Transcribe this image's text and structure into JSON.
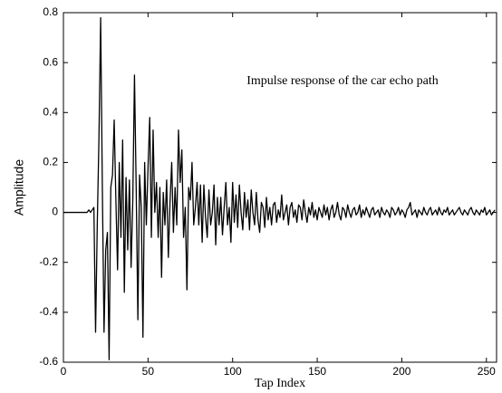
{
  "chart_data": {
    "type": "line",
    "annotation": "Impulse response of the car echo path",
    "x_label": "Tap Index",
    "y_label": "Amplitude",
    "color": "#000000",
    "xlim": [
      0,
      256
    ],
    "xticks": [
      0,
      50,
      100,
      150,
      200,
      250
    ],
    "ylim": [
      -0.6,
      0.8
    ],
    "yticks": [
      -0.6,
      -0.4,
      -0.2,
      0,
      0.2,
      0.4,
      0.6,
      0.8
    ],
    "grid": false,
    "x": [
      0,
      1,
      2,
      3,
      4,
      5,
      6,
      7,
      8,
      9,
      10,
      11,
      12,
      13,
      14,
      15,
      16,
      17,
      18,
      19,
      20,
      21,
      22,
      23,
      24,
      25,
      26,
      27,
      28,
      29,
      30,
      31,
      32,
      33,
      34,
      35,
      36,
      37,
      38,
      39,
      40,
      41,
      42,
      43,
      44,
      45,
      46,
      47,
      48,
      49,
      50,
      51,
      52,
      53,
      54,
      55,
      56,
      57,
      58,
      59,
      60,
      61,
      62,
      63,
      64,
      65,
      66,
      67,
      68,
      69,
      70,
      71,
      72,
      73,
      74,
      75,
      76,
      77,
      78,
      79,
      80,
      81,
      82,
      83,
      84,
      85,
      86,
      87,
      88,
      89,
      90,
      91,
      92,
      93,
      94,
      95,
      96,
      97,
      98,
      99,
      100,
      101,
      102,
      103,
      104,
      105,
      106,
      107,
      108,
      109,
      110,
      111,
      112,
      113,
      114,
      115,
      116,
      117,
      118,
      119,
      120,
      121,
      122,
      123,
      124,
      125,
      126,
      127,
      128,
      129,
      130,
      131,
      132,
      133,
      134,
      135,
      136,
      137,
      138,
      139,
      140,
      141,
      142,
      143,
      144,
      145,
      146,
      147,
      148,
      149,
      150,
      151,
      152,
      153,
      154,
      155,
      156,
      157,
      158,
      159,
      160,
      161,
      162,
      163,
      164,
      165,
      166,
      167,
      168,
      169,
      170,
      171,
      172,
      173,
      174,
      175,
      176,
      177,
      178,
      179,
      180,
      181,
      182,
      183,
      184,
      185,
      186,
      187,
      188,
      189,
      190,
      191,
      192,
      193,
      194,
      195,
      196,
      197,
      198,
      199,
      200,
      201,
      202,
      203,
      204,
      205,
      206,
      207,
      208,
      209,
      210,
      211,
      212,
      213,
      214,
      215,
      216,
      217,
      218,
      219,
      220,
      221,
      222,
      223,
      224,
      225,
      226,
      227,
      228,
      229,
      230,
      231,
      232,
      233,
      234,
      235,
      236,
      237,
      238,
      239,
      240,
      241,
      242,
      243,
      244,
      245,
      246,
      247,
      248,
      249,
      250,
      251,
      252,
      253,
      254,
      255
    ],
    "values": [
      0,
      0,
      0,
      0,
      0,
      0,
      0,
      0,
      0,
      0,
      0,
      0,
      0,
      0,
      0,
      0.01,
      0,
      0.01,
      0.02,
      -0.48,
      -0.05,
      0.3,
      0.78,
      0.1,
      -0.48,
      -0.15,
      -0.08,
      -0.59,
      0.1,
      0.15,
      0.37,
      0.05,
      -0.23,
      0.2,
      -0.1,
      0.29,
      -0.32,
      0.14,
      -0.15,
      0.13,
      -0.22,
      0.05,
      0.55,
      0.1,
      -0.43,
      0.15,
      0.02,
      -0.5,
      0.2,
      -0.05,
      0.18,
      0.38,
      -0.1,
      0.33,
      0,
      0.12,
      -0.1,
      0.1,
      -0.26,
      0.08,
      -0.05,
      0.13,
      -0.18,
      0.04,
      0.2,
      -0.08,
      0.1,
      -0.05,
      0.33,
      0.12,
      0.25,
      -0.1,
      0.02,
      -0.31,
      0.1,
      0.05,
      0.2,
      -0.05,
      0.02,
      0.12,
      -0.05,
      0.11,
      -0.12,
      0.11,
      -0.02,
      -0.1,
      0.09,
      -0.05,
      0,
      0.11,
      -0.13,
      0.06,
      -0.05,
      0.06,
      -0.09,
      0.02,
      0.12,
      -0.05,
      0.02,
      -0.12,
      0.12,
      -0.04,
      0.07,
      -0.06,
      0.11,
      0,
      -0.07,
      0.08,
      -0.02,
      0.05,
      -0.07,
      0.09,
      0,
      -0.05,
      0.08,
      -0.03,
      -0.08,
      0.04,
      0.02,
      -0.06,
      0.06,
      -0.03,
      0.02,
      -0.05,
      0.03,
      0.04,
      -0.04,
      0.01,
      -0.02,
      0.07,
      -0.03,
      0,
      0.03,
      -0.05,
      0.02,
      0.04,
      -0.02,
      0.01,
      -0.04,
      0.03,
      0.02,
      -0.03,
      0.05,
      0,
      -0.04,
      0.02,
      -0.01,
      0.04,
      -0.02,
      0.01,
      -0.03,
      0.02,
      0,
      -0.02,
      0.03,
      -0.01,
      0.02,
      -0.03,
      0.01,
      0.03,
      -0.02,
      0,
      0.04,
      -0.01,
      -0.03,
      0.02,
      0.01,
      -0.02,
      0.03,
      0,
      -0.02,
      0.01,
      0.02,
      -0.01,
      0,
      0.03,
      -0.02,
      0.01,
      -0.01,
      0.02,
      0,
      -0.02,
      0.01,
      0.02,
      -0.01,
      0,
      0.01,
      -0.02,
      0.02,
      0,
      -0.01,
      0.01,
      0,
      -0.02,
      0.02,
      0.01,
      -0.01,
      0,
      0.02,
      -0.01,
      0.01,
      0,
      -0.02,
      0.01,
      0.02,
      0.04,
      -0.01,
      0,
      0.01,
      -0.02,
      0.01,
      0,
      -0.01,
      0.02,
      0,
      -0.01,
      0.01,
      0.02,
      -0.01,
      0,
      0.01,
      -0.01,
      0.02,
      0,
      -0.01,
      0.01,
      0,
      0.02,
      -0.01,
      0,
      0.01,
      -0.01,
      0,
      0.01,
      0.02,
      0,
      -0.01,
      0.01,
      0,
      -0.01,
      0.01,
      0.02,
      0,
      -0.01,
      0.01,
      0,
      -0.01,
      0.01,
      0,
      0.02,
      -0.01,
      0,
      0.01,
      -0.01,
      0,
      0.01
    ]
  }
}
